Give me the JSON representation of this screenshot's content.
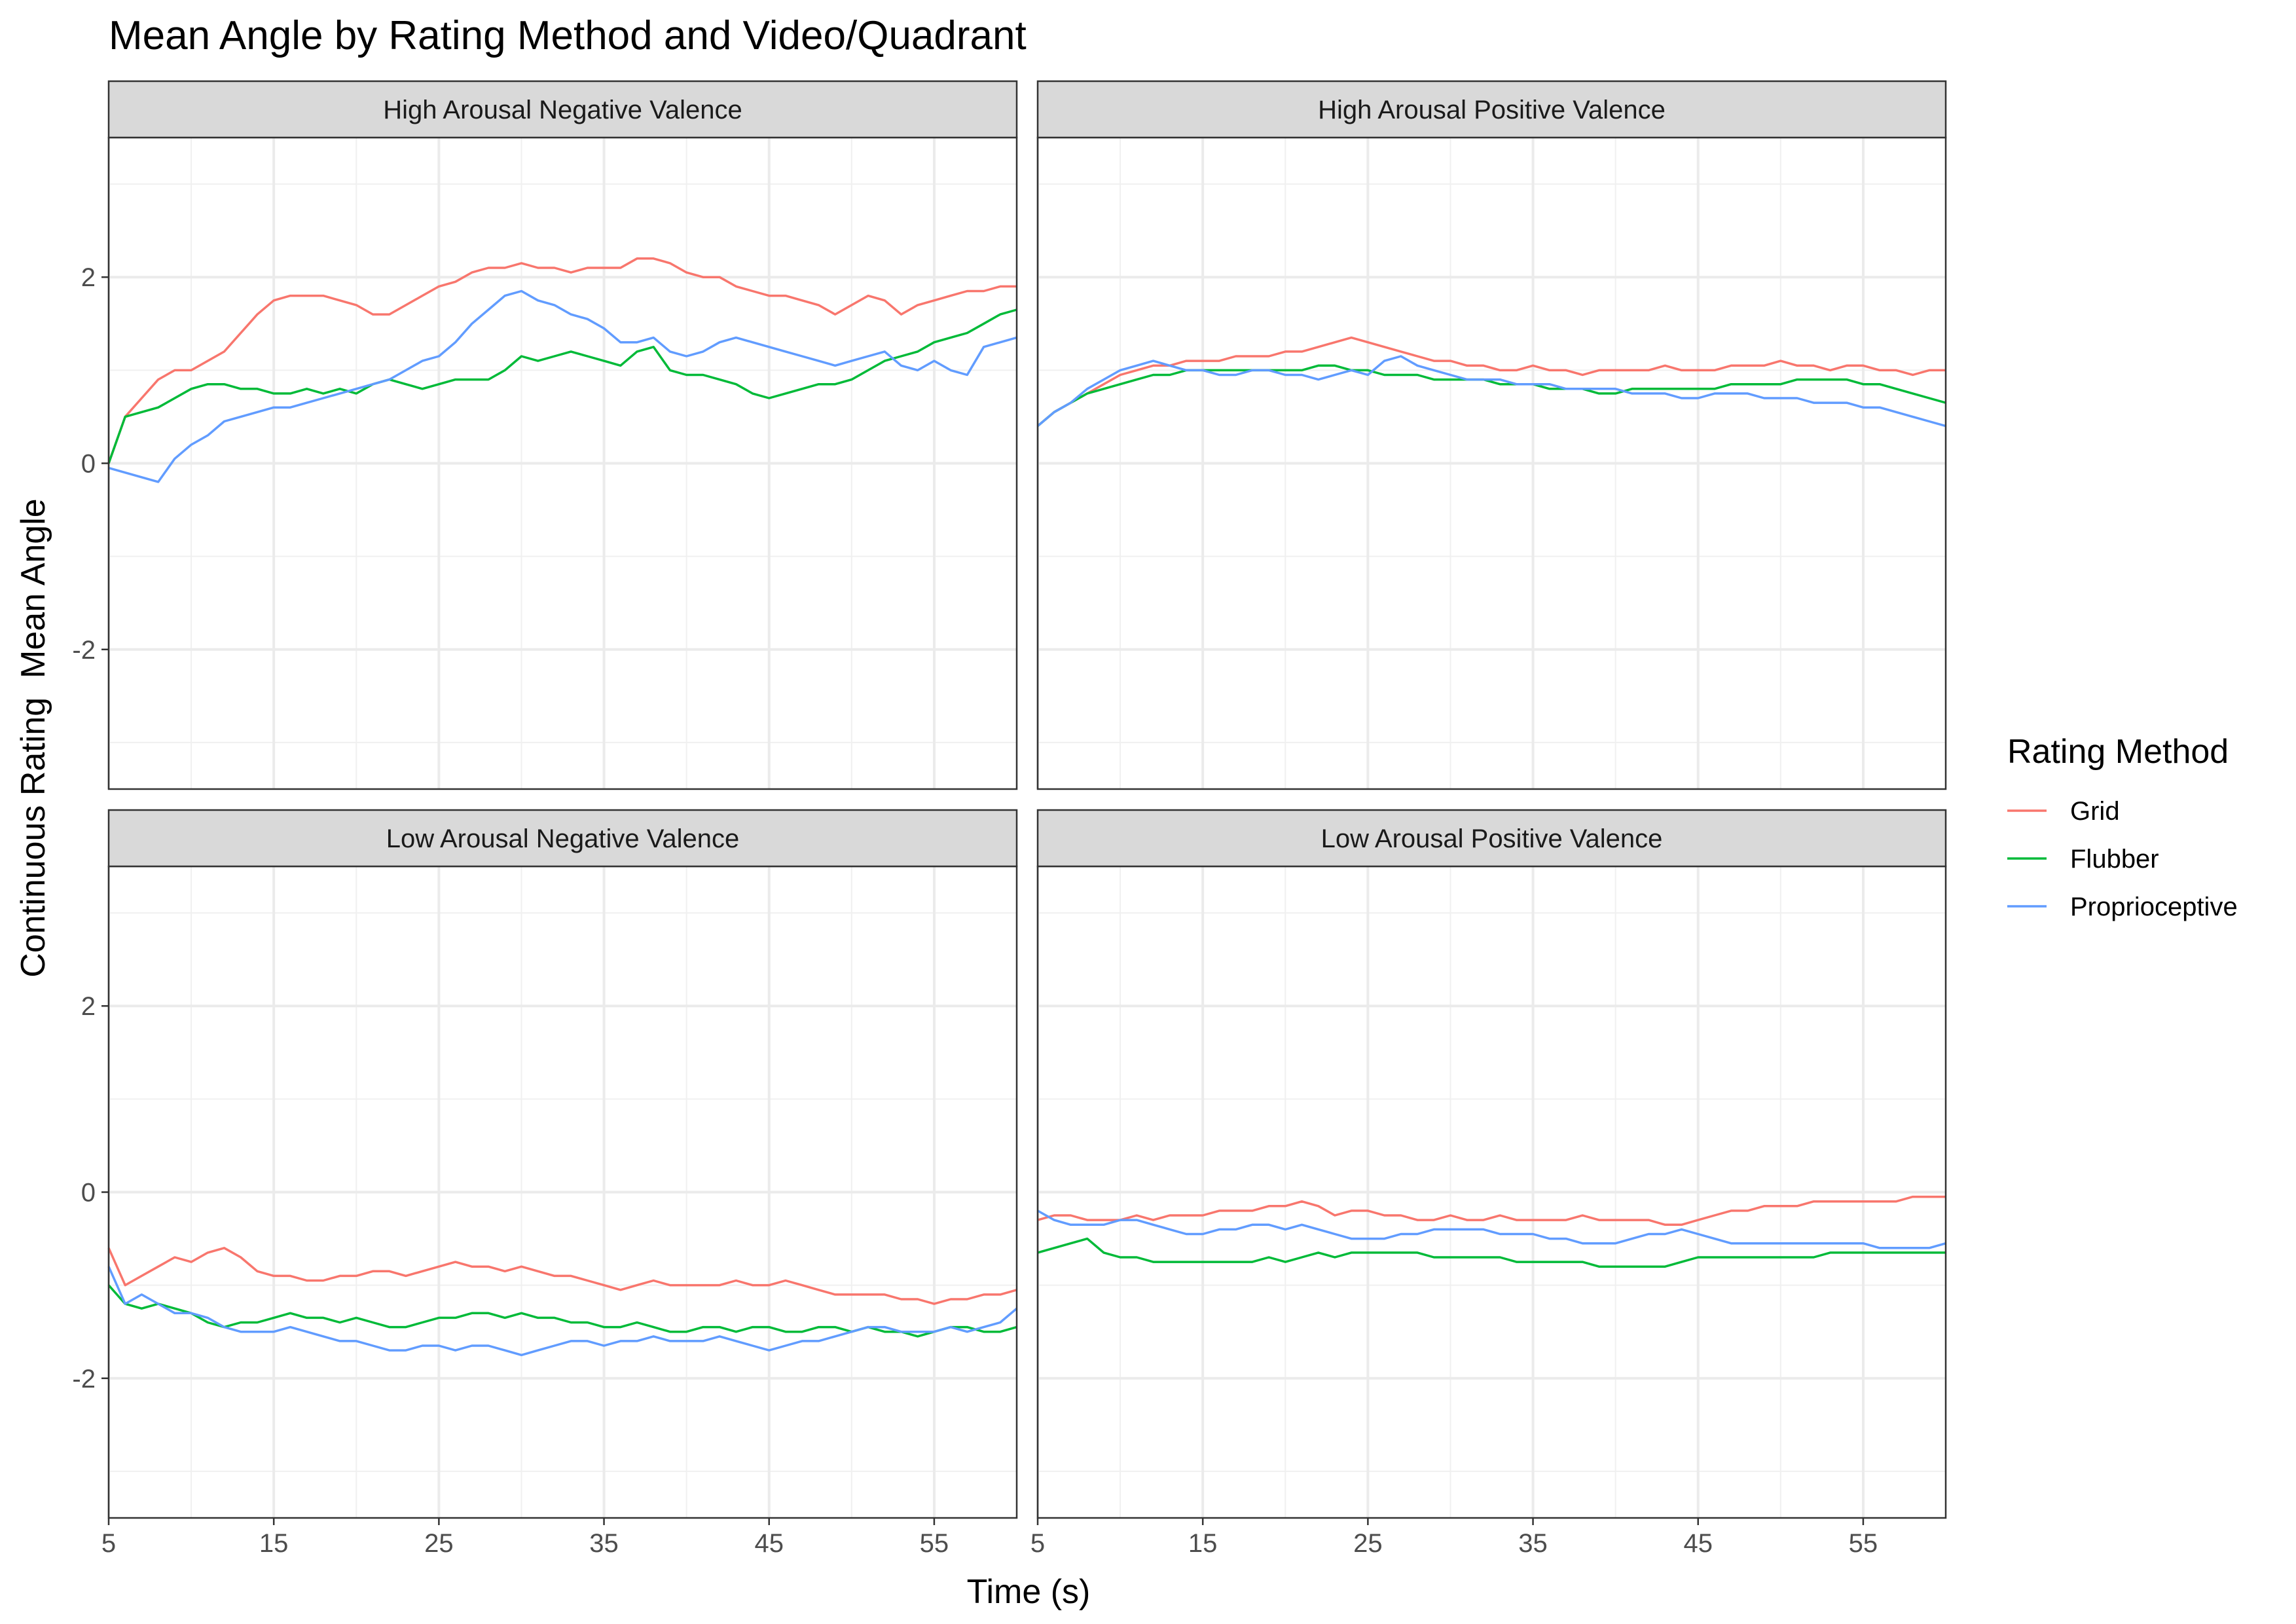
{
  "title": "Mean Angle by Rating Method and Video/Quadrant",
  "chart_data": {
    "type": "line",
    "title": "Mean Angle by Rating Method and Video/Quadrant",
    "xlabel": "Time (s)",
    "ylabel": "Continuous Rating  Mean Angle",
    "xlim": [
      5,
      60
    ],
    "ylim": [
      -3.5,
      3.5
    ],
    "x_ticks": [
      5,
      15,
      25,
      35,
      45,
      55
    ],
    "y_ticks": [
      -2,
      0,
      2
    ],
    "grid": true,
    "legend": {
      "title": "Rating Method",
      "position": "right",
      "entries": [
        {
          "name": "Grid",
          "color": "#F8766D"
        },
        {
          "name": "Flubber",
          "color": "#00BA38"
        },
        {
          "name": "Proprioceptive",
          "color": "#619CFF"
        }
      ]
    },
    "x": [
      5,
      6,
      7,
      8,
      9,
      10,
      11,
      12,
      13,
      14,
      15,
      16,
      17,
      18,
      19,
      20,
      21,
      22,
      23,
      24,
      25,
      26,
      27,
      28,
      29,
      30,
      31,
      32,
      33,
      34,
      35,
      36,
      37,
      38,
      39,
      40,
      41,
      42,
      43,
      44,
      45,
      46,
      47,
      48,
      49,
      50,
      51,
      52,
      53,
      54,
      55,
      56,
      57,
      58,
      59,
      60
    ],
    "facets": [
      {
        "label": "High Arousal Negative Valence",
        "series": [
          {
            "name": "Grid",
            "values": [
              0.0,
              0.5,
              0.7,
              0.9,
              1.0,
              1.0,
              1.1,
              1.2,
              1.4,
              1.6,
              1.75,
              1.8,
              1.8,
              1.8,
              1.75,
              1.7,
              1.6,
              1.6,
              1.7,
              1.8,
              1.9,
              1.95,
              2.05,
              2.1,
              2.1,
              2.15,
              2.1,
              2.1,
              2.05,
              2.1,
              2.1,
              2.1,
              2.2,
              2.2,
              2.15,
              2.05,
              2.0,
              2.0,
              1.9,
              1.85,
              1.8,
              1.8,
              1.75,
              1.7,
              1.6,
              1.7,
              1.8,
              1.75,
              1.6,
              1.7,
              1.75,
              1.8,
              1.85,
              1.85,
              1.9,
              1.9
            ]
          },
          {
            "name": "Flubber",
            "values": [
              0.0,
              0.5,
              0.55,
              0.6,
              0.7,
              0.8,
              0.85,
              0.85,
              0.8,
              0.8,
              0.75,
              0.75,
              0.8,
              0.75,
              0.8,
              0.75,
              0.85,
              0.9,
              0.85,
              0.8,
              0.85,
              0.9,
              0.9,
              0.9,
              1.0,
              1.15,
              1.1,
              1.15,
              1.2,
              1.15,
              1.1,
              1.05,
              1.2,
              1.25,
              1.0,
              0.95,
              0.95,
              0.9,
              0.85,
              0.75,
              0.7,
              0.75,
              0.8,
              0.85,
              0.85,
              0.9,
              1.0,
              1.1,
              1.15,
              1.2,
              1.3,
              1.35,
              1.4,
              1.5,
              1.6,
              1.65
            ]
          },
          {
            "name": "Proprioceptive",
            "values": [
              -0.05,
              -0.1,
              -0.15,
              -0.2,
              0.05,
              0.2,
              0.3,
              0.45,
              0.5,
              0.55,
              0.6,
              0.6,
              0.65,
              0.7,
              0.75,
              0.8,
              0.85,
              0.9,
              1.0,
              1.1,
              1.15,
              1.3,
              1.5,
              1.65,
              1.8,
              1.85,
              1.75,
              1.7,
              1.6,
              1.55,
              1.45,
              1.3,
              1.3,
              1.35,
              1.2,
              1.15,
              1.2,
              1.3,
              1.35,
              1.3,
              1.25,
              1.2,
              1.15,
              1.1,
              1.05,
              1.1,
              1.15,
              1.2,
              1.05,
              1.0,
              1.1,
              1.0,
              0.95,
              1.25,
              1.3,
              1.35
            ]
          }
        ]
      },
      {
        "label": "High Arousal Positive Valence",
        "series": [
          {
            "name": "Grid",
            "values": [
              0.4,
              0.55,
              0.65,
              0.75,
              0.85,
              0.95,
              1.0,
              1.05,
              1.05,
              1.1,
              1.1,
              1.1,
              1.15,
              1.15,
              1.15,
              1.2,
              1.2,
              1.25,
              1.3,
              1.35,
              1.3,
              1.25,
              1.2,
              1.15,
              1.1,
              1.1,
              1.05,
              1.05,
              1.0,
              1.0,
              1.05,
              1.0,
              1.0,
              0.95,
              1.0,
              1.0,
              1.0,
              1.0,
              1.05,
              1.0,
              1.0,
              1.0,
              1.05,
              1.05,
              1.05,
              1.1,
              1.05,
              1.05,
              1.0,
              1.05,
              1.05,
              1.0,
              1.0,
              0.95,
              1.0,
              1.0
            ]
          },
          {
            "name": "Flubber",
            "values": [
              0.4,
              0.55,
              0.65,
              0.75,
              0.8,
              0.85,
              0.9,
              0.95,
              0.95,
              1.0,
              1.0,
              1.0,
              1.0,
              1.0,
              1.0,
              1.0,
              1.0,
              1.05,
              1.05,
              1.0,
              1.0,
              0.95,
              0.95,
              0.95,
              0.9,
              0.9,
              0.9,
              0.9,
              0.85,
              0.85,
              0.85,
              0.8,
              0.8,
              0.8,
              0.75,
              0.75,
              0.8,
              0.8,
              0.8,
              0.8,
              0.8,
              0.8,
              0.85,
              0.85,
              0.85,
              0.85,
              0.9,
              0.9,
              0.9,
              0.9,
              0.85,
              0.85,
              0.8,
              0.75,
              0.7,
              0.65
            ]
          },
          {
            "name": "Proprioceptive",
            "values": [
              0.4,
              0.55,
              0.65,
              0.8,
              0.9,
              1.0,
              1.05,
              1.1,
              1.05,
              1.0,
              1.0,
              0.95,
              0.95,
              1.0,
              1.0,
              0.95,
              0.95,
              0.9,
              0.95,
              1.0,
              0.95,
              1.1,
              1.15,
              1.05,
              1.0,
              0.95,
              0.9,
              0.9,
              0.9,
              0.85,
              0.85,
              0.85,
              0.8,
              0.8,
              0.8,
              0.8,
              0.75,
              0.75,
              0.75,
              0.7,
              0.7,
              0.75,
              0.75,
              0.75,
              0.7,
              0.7,
              0.7,
              0.65,
              0.65,
              0.65,
              0.6,
              0.6,
              0.55,
              0.5,
              0.45,
              0.4
            ]
          }
        ]
      },
      {
        "label": "Low Arousal Negative Valence",
        "series": [
          {
            "name": "Grid",
            "values": [
              -0.6,
              -1.0,
              -0.9,
              -0.8,
              -0.7,
              -0.75,
              -0.65,
              -0.6,
              -0.7,
              -0.85,
              -0.9,
              -0.9,
              -0.95,
              -0.95,
              -0.9,
              -0.9,
              -0.85,
              -0.85,
              -0.9,
              -0.85,
              -0.8,
              -0.75,
              -0.8,
              -0.8,
              -0.85,
              -0.8,
              -0.85,
              -0.9,
              -0.9,
              -0.95,
              -1.0,
              -1.05,
              -1.0,
              -0.95,
              -1.0,
              -1.0,
              -1.0,
              -1.0,
              -0.95,
              -1.0,
              -1.0,
              -0.95,
              -1.0,
              -1.05,
              -1.1,
              -1.1,
              -1.1,
              -1.1,
              -1.15,
              -1.15,
              -1.2,
              -1.15,
              -1.15,
              -1.1,
              -1.1,
              -1.05
            ]
          },
          {
            "name": "Flubber",
            "values": [
              -1.0,
              -1.2,
              -1.25,
              -1.2,
              -1.25,
              -1.3,
              -1.4,
              -1.45,
              -1.4,
              -1.4,
              -1.35,
              -1.3,
              -1.35,
              -1.35,
              -1.4,
              -1.35,
              -1.4,
              -1.45,
              -1.45,
              -1.4,
              -1.35,
              -1.35,
              -1.3,
              -1.3,
              -1.35,
              -1.3,
              -1.35,
              -1.35,
              -1.4,
              -1.4,
              -1.45,
              -1.45,
              -1.4,
              -1.45,
              -1.5,
              -1.5,
              -1.45,
              -1.45,
              -1.5,
              -1.45,
              -1.45,
              -1.5,
              -1.5,
              -1.45,
              -1.45,
              -1.5,
              -1.45,
              -1.5,
              -1.5,
              -1.55,
              -1.5,
              -1.45,
              -1.45,
              -1.5,
              -1.5,
              -1.45
            ]
          },
          {
            "name": "Proprioceptive",
            "values": [
              -0.8,
              -1.2,
              -1.1,
              -1.2,
              -1.3,
              -1.3,
              -1.35,
              -1.45,
              -1.5,
              -1.5,
              -1.5,
              -1.45,
              -1.5,
              -1.55,
              -1.6,
              -1.6,
              -1.65,
              -1.7,
              -1.7,
              -1.65,
              -1.65,
              -1.7,
              -1.65,
              -1.65,
              -1.7,
              -1.75,
              -1.7,
              -1.65,
              -1.6,
              -1.6,
              -1.65,
              -1.6,
              -1.6,
              -1.55,
              -1.6,
              -1.6,
              -1.6,
              -1.55,
              -1.6,
              -1.65,
              -1.7,
              -1.65,
              -1.6,
              -1.6,
              -1.55,
              -1.5,
              -1.45,
              -1.45,
              -1.5,
              -1.5,
              -1.5,
              -1.45,
              -1.5,
              -1.45,
              -1.4,
              -1.25
            ]
          }
        ]
      },
      {
        "label": "Low Arousal Positive Valence",
        "series": [
          {
            "name": "Grid",
            "values": [
              -0.3,
              -0.25,
              -0.25,
              -0.3,
              -0.3,
              -0.3,
              -0.25,
              -0.3,
              -0.25,
              -0.25,
              -0.25,
              -0.2,
              -0.2,
              -0.2,
              -0.15,
              -0.15,
              -0.1,
              -0.15,
              -0.25,
              -0.2,
              -0.2,
              -0.25,
              -0.25,
              -0.3,
              -0.3,
              -0.25,
              -0.3,
              -0.3,
              -0.25,
              -0.3,
              -0.3,
              -0.3,
              -0.3,
              -0.25,
              -0.3,
              -0.3,
              -0.3,
              -0.3,
              -0.35,
              -0.35,
              -0.3,
              -0.25,
              -0.2,
              -0.2,
              -0.15,
              -0.15,
              -0.15,
              -0.1,
              -0.1,
              -0.1,
              -0.1,
              -0.1,
              -0.1,
              -0.05,
              -0.05,
              -0.05
            ]
          },
          {
            "name": "Flubber",
            "values": [
              -0.65,
              -0.6,
              -0.55,
              -0.5,
              -0.65,
              -0.7,
              -0.7,
              -0.75,
              -0.75,
              -0.75,
              -0.75,
              -0.75,
              -0.75,
              -0.75,
              -0.7,
              -0.75,
              -0.7,
              -0.65,
              -0.7,
              -0.65,
              -0.65,
              -0.65,
              -0.65,
              -0.65,
              -0.7,
              -0.7,
              -0.7,
              -0.7,
              -0.7,
              -0.75,
              -0.75,
              -0.75,
              -0.75,
              -0.75,
              -0.8,
              -0.8,
              -0.8,
              -0.8,
              -0.8,
              -0.75,
              -0.7,
              -0.7,
              -0.7,
              -0.7,
              -0.7,
              -0.7,
              -0.7,
              -0.7,
              -0.65,
              -0.65,
              -0.65,
              -0.65,
              -0.65,
              -0.65,
              -0.65,
              -0.65
            ]
          },
          {
            "name": "Proprioceptive",
            "values": [
              -0.2,
              -0.3,
              -0.35,
              -0.35,
              -0.35,
              -0.3,
              -0.3,
              -0.35,
              -0.4,
              -0.45,
              -0.45,
              -0.4,
              -0.4,
              -0.35,
              -0.35,
              -0.4,
              -0.35,
              -0.4,
              -0.45,
              -0.5,
              -0.5,
              -0.5,
              -0.45,
              -0.45,
              -0.4,
              -0.4,
              -0.4,
              -0.4,
              -0.45,
              -0.45,
              -0.45,
              -0.5,
              -0.5,
              -0.55,
              -0.55,
              -0.55,
              -0.5,
              -0.45,
              -0.45,
              -0.4,
              -0.45,
              -0.5,
              -0.55,
              -0.55,
              -0.55,
              -0.55,
              -0.55,
              -0.55,
              -0.55,
              -0.55,
              -0.55,
              -0.6,
              -0.6,
              -0.6,
              -0.6,
              -0.55
            ]
          }
        ]
      }
    ]
  }
}
